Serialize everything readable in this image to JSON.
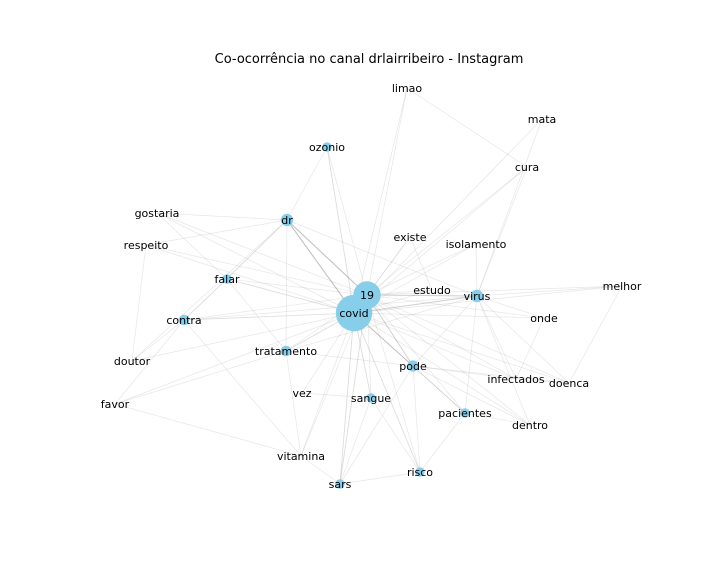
{
  "title": "Co-ocorrência no canal drlairribeiro - Instagram",
  "style": {
    "node_color": "#87CEEB",
    "edge_color": "#9a9a9a",
    "text_color": "#000000"
  },
  "nodes": [
    {
      "id": "covid",
      "label": "covid",
      "weight": 10
    },
    {
      "id": "19",
      "label": "19",
      "weight": 7
    },
    {
      "id": "dr",
      "label": "dr",
      "weight": 2
    },
    {
      "id": "virus",
      "label": "virus",
      "weight": 2
    },
    {
      "id": "pode",
      "label": "pode",
      "weight": 1.6
    },
    {
      "id": "ozonio",
      "label": "ozonio",
      "weight": 1
    },
    {
      "id": "falar",
      "label": "falar",
      "weight": 1
    },
    {
      "id": "contra",
      "label": "contra",
      "weight": 1.4
    },
    {
      "id": "tratamento",
      "label": "tratamento",
      "weight": 1.4
    },
    {
      "id": "sangue",
      "label": "sangue",
      "weight": 1
    },
    {
      "id": "pacientes",
      "label": "pacientes",
      "weight": 1
    },
    {
      "id": "risco",
      "label": "risco",
      "weight": 1
    },
    {
      "id": "sars",
      "label": "sars",
      "weight": 1
    },
    {
      "id": "limao",
      "label": "limao",
      "weight": 0
    },
    {
      "id": "mata",
      "label": "mata",
      "weight": 0
    },
    {
      "id": "cura",
      "label": "cura",
      "weight": 0
    },
    {
      "id": "gostaria",
      "label": "gostaria",
      "weight": 0
    },
    {
      "id": "respeito",
      "label": "respeito",
      "weight": 0
    },
    {
      "id": "existe",
      "label": "existe",
      "weight": 0
    },
    {
      "id": "isolamento",
      "label": "isolamento",
      "weight": 0
    },
    {
      "id": "estudo",
      "label": "estudo",
      "weight": 0
    },
    {
      "id": "melhor",
      "label": "melhor",
      "weight": 0
    },
    {
      "id": "onde",
      "label": "onde",
      "weight": 0
    },
    {
      "id": "doutor",
      "label": "doutor",
      "weight": 0
    },
    {
      "id": "infectados",
      "label": "infectados",
      "weight": 0
    },
    {
      "id": "doenca",
      "label": "doenca",
      "weight": 0
    },
    {
      "id": "vez",
      "label": "vez",
      "weight": 0
    },
    {
      "id": "favor",
      "label": "favor",
      "weight": 0
    },
    {
      "id": "dentro",
      "label": "dentro",
      "weight": 0
    },
    {
      "id": "vitamina",
      "label": "vitamina",
      "weight": 0
    }
  ],
  "edges": [
    [
      "covid",
      "19",
      5
    ],
    [
      "covid",
      "dr",
      4
    ],
    [
      "19",
      "dr",
      4
    ],
    [
      "covid",
      "virus",
      3
    ],
    [
      "19",
      "virus",
      3
    ],
    [
      "covid",
      "pode",
      3
    ],
    [
      "19",
      "pode",
      3
    ],
    [
      "covid",
      "contra",
      2
    ],
    [
      "covid",
      "tratamento",
      2
    ],
    [
      "covid",
      "falar",
      2
    ],
    [
      "covid",
      "sangue",
      2
    ],
    [
      "covid",
      "sars",
      2
    ],
    [
      "19",
      "sars",
      2
    ],
    [
      "covid",
      "risco",
      2
    ],
    [
      "covid",
      "pacientes",
      2
    ],
    [
      "covid",
      "ozonio",
      2
    ],
    [
      "19",
      "ozonio",
      1
    ],
    [
      "covid",
      "limao",
      1
    ],
    [
      "19",
      "limao",
      1
    ],
    [
      "covid",
      "cura",
      1
    ],
    [
      "19",
      "cura",
      1
    ],
    [
      "covid",
      "mata",
      1
    ],
    [
      "covid",
      "isolamento",
      1
    ],
    [
      "19",
      "isolamento",
      1
    ],
    [
      "covid",
      "estudo",
      1
    ],
    [
      "19",
      "estudo",
      1
    ],
    [
      "covid",
      "existe",
      1
    ],
    [
      "19",
      "existe",
      1
    ],
    [
      "covid",
      "onde",
      1
    ],
    [
      "covid",
      "melhor",
      1
    ],
    [
      "covid",
      "infectados",
      1
    ],
    [
      "covid",
      "doenca",
      1
    ],
    [
      "covid",
      "dentro",
      1
    ],
    [
      "covid",
      "vez",
      1
    ],
    [
      "covid",
      "vitamina",
      1
    ],
    [
      "covid",
      "favor",
      1
    ],
    [
      "covid",
      "doutor",
      1
    ],
    [
      "covid",
      "respeito",
      1
    ],
    [
      "covid",
      "gostaria",
      1
    ],
    [
      "19",
      "gostaria",
      1
    ],
    [
      "19",
      "respeito",
      1
    ],
    [
      "19",
      "falar",
      1
    ],
    [
      "19",
      "contra",
      1
    ],
    [
      "19",
      "tratamento",
      1
    ],
    [
      "19",
      "sangue",
      1
    ],
    [
      "19",
      "risco",
      1
    ],
    [
      "19",
      "pacientes",
      1
    ],
    [
      "19",
      "infectados",
      1
    ],
    [
      "19",
      "doenca",
      1
    ],
    [
      "19",
      "dentro",
      1
    ],
    [
      "19",
      "onde",
      1
    ],
    [
      "19",
      "melhor",
      1
    ],
    [
      "19",
      "vitamina",
      1
    ],
    [
      "dr",
      "respeito",
      1
    ],
    [
      "dr",
      "gostaria",
      1
    ],
    [
      "dr",
      "contra",
      1
    ],
    [
      "dr",
      "falar",
      1
    ],
    [
      "dr",
      "tratamento",
      1
    ],
    [
      "dr",
      "doutor",
      1
    ],
    [
      "dr",
      "virus",
      1
    ],
    [
      "virus",
      "isolamento",
      1
    ],
    [
      "virus",
      "cura",
      1
    ],
    [
      "virus",
      "mata",
      1
    ],
    [
      "virus",
      "pode",
      1
    ],
    [
      "virus",
      "melhor",
      1
    ],
    [
      "virus",
      "onde",
      1
    ],
    [
      "virus",
      "pacientes",
      1
    ],
    [
      "virus",
      "dentro",
      1
    ],
    [
      "virus",
      "doenca",
      1
    ],
    [
      "virus",
      "infectados",
      1
    ],
    [
      "virus",
      "contra",
      1
    ],
    [
      "virus",
      "tratamento",
      1
    ],
    [
      "pode",
      "doenca",
      1
    ],
    [
      "pode",
      "infectados",
      1
    ],
    [
      "pode",
      "pacientes",
      1
    ],
    [
      "pode",
      "dentro",
      1
    ],
    [
      "pode",
      "risco",
      1
    ],
    [
      "pode",
      "sars",
      1
    ],
    [
      "pode",
      "tratamento",
      1
    ],
    [
      "contra",
      "favor",
      1
    ],
    [
      "contra",
      "doutor",
      1
    ],
    [
      "contra",
      "falar",
      1
    ],
    [
      "contra",
      "vitamina",
      1
    ],
    [
      "tratamento",
      "falar",
      1
    ],
    [
      "tratamento",
      "vitamina",
      1
    ],
    [
      "tratamento",
      "favor",
      1
    ],
    [
      "sangue",
      "sars",
      1
    ],
    [
      "sangue",
      "risco",
      1
    ],
    [
      "sangue",
      "vez",
      1
    ],
    [
      "sars",
      "vitamina",
      1
    ],
    [
      "sars",
      "risco",
      1
    ],
    [
      "risco",
      "pacientes",
      1
    ],
    [
      "pacientes",
      "dentro",
      1
    ],
    [
      "infectados",
      "doenca",
      1
    ],
    [
      "respeito",
      "doutor",
      1
    ],
    [
      "gostaria",
      "falar",
      1
    ],
    [
      "favor",
      "vitamina",
      1
    ],
    [
      "ozonio",
      "dr",
      1
    ],
    [
      "limao",
      "cura",
      1
    ],
    [
      "melhor",
      "doenca",
      1
    ],
    [
      "onde",
      "infectados",
      1
    ],
    [
      "existe",
      "estudo",
      1
    ]
  ]
}
